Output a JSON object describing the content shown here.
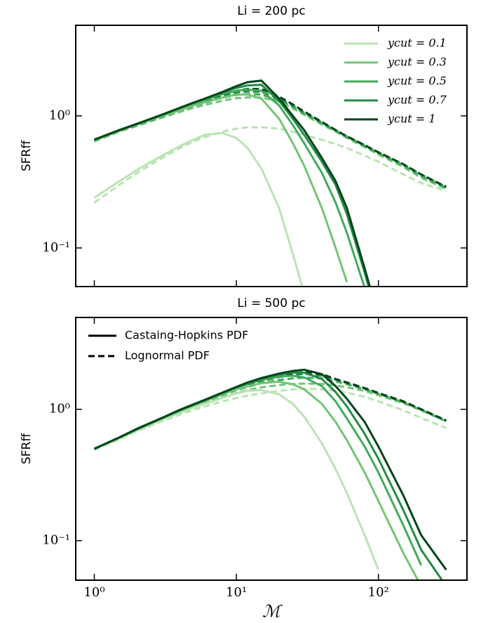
{
  "chart_data": [
    {
      "type": "line",
      "title": "Li = 200 pc",
      "ylabel": "SFRff",
      "xscale": "log",
      "yscale": "log",
      "xlim": [
        0.74,
        420
      ],
      "ylim": [
        0.051,
        4.85
      ],
      "xticks": [
        1,
        10,
        100
      ],
      "yticks": [
        {
          "value": 0.1,
          "label": "10⁻¹"
        },
        {
          "value": 1,
          "label": "10⁰"
        }
      ],
      "legend": "upper right",
      "x": [
        1,
        1.5,
        2,
        3,
        4,
        5,
        6,
        8,
        10,
        12,
        15,
        20,
        25,
        30,
        40,
        50,
        60,
        80,
        100,
        150,
        200,
        300
      ],
      "series": [
        {
          "name": "ycut = 0.1",
          "color": "#bae4b3",
          "values": [
            0.24,
            0.32,
            0.39,
            0.5,
            0.59,
            0.66,
            0.72,
            0.74,
            0.68,
            0.57,
            0.4,
            0.2,
            0.09,
            0.045,
            null,
            null,
            null,
            null,
            null,
            null,
            null,
            null
          ],
          "lognormal_values": [
            0.22,
            0.3,
            0.37,
            0.48,
            0.57,
            0.64,
            0.69,
            0.76,
            0.8,
            0.82,
            0.82,
            0.8,
            0.76,
            0.72,
            0.66,
            0.61,
            0.57,
            0.5,
            0.45,
            0.36,
            0.31,
            0.27
          ]
        },
        {
          "name": "ycut = 0.3",
          "color": "#74c476",
          "values": [
            0.65,
            0.77,
            0.86,
            1.0,
            1.1,
            1.2,
            1.27,
            1.38,
            1.45,
            1.45,
            1.35,
            0.95,
            0.62,
            0.42,
            0.2,
            0.1,
            0.055,
            null,
            null,
            null,
            null,
            null
          ],
          "lognormal_values": [
            0.64,
            0.76,
            0.84,
            0.97,
            1.07,
            1.15,
            1.21,
            1.3,
            1.36,
            1.38,
            1.38,
            1.28,
            1.14,
            1.02,
            0.86,
            0.76,
            0.68,
            0.58,
            0.51,
            0.41,
            0.34,
            0.28
          ]
        },
        {
          "name": "ycut = 0.5",
          "color": "#41ab5d",
          "values": [
            0.66,
            0.78,
            0.87,
            1.02,
            1.14,
            1.24,
            1.32,
            1.46,
            1.55,
            1.58,
            1.55,
            1.2,
            0.85,
            0.62,
            0.37,
            0.22,
            0.13,
            0.05,
            null,
            null,
            null,
            null
          ],
          "lognormal_values": [
            0.65,
            0.77,
            0.85,
            0.99,
            1.1,
            1.19,
            1.26,
            1.37,
            1.44,
            1.46,
            1.45,
            1.32,
            1.17,
            1.04,
            0.88,
            0.77,
            0.69,
            0.59,
            0.52,
            0.42,
            0.35,
            0.285
          ]
        },
        {
          "name": "ycut = 0.7",
          "color": "#238b45",
          "values": [
            0.66,
            0.78,
            0.87,
            1.02,
            1.15,
            1.26,
            1.35,
            1.5,
            1.63,
            1.7,
            1.72,
            1.3,
            0.95,
            0.72,
            0.45,
            0.3,
            0.18,
            0.065,
            0.028,
            null,
            null,
            null
          ],
          "lognormal_values": [
            0.65,
            0.77,
            0.86,
            1.0,
            1.12,
            1.21,
            1.29,
            1.42,
            1.5,
            1.53,
            1.52,
            1.35,
            1.2,
            1.06,
            0.89,
            0.78,
            0.7,
            0.6,
            0.53,
            0.43,
            0.36,
            0.29
          ]
        },
        {
          "name": "ycut = 1",
          "color": "#00441b",
          "values": [
            0.66,
            0.78,
            0.87,
            1.02,
            1.15,
            1.26,
            1.35,
            1.52,
            1.68,
            1.8,
            1.85,
            1.35,
            1.0,
            0.78,
            0.48,
            0.32,
            0.2,
            0.07,
            0.03,
            null,
            null,
            null
          ],
          "lognormal_values": [
            0.65,
            0.77,
            0.86,
            1.0,
            1.12,
            1.22,
            1.3,
            1.45,
            1.55,
            1.6,
            1.6,
            1.4,
            1.22,
            1.08,
            0.9,
            0.78,
            0.7,
            0.6,
            0.53,
            0.43,
            0.36,
            0.29
          ]
        }
      ]
    },
    {
      "type": "line",
      "title": "Li = 500 pc",
      "ylabel": "SFRff",
      "xlabel": "ℳ",
      "xscale": "log",
      "yscale": "log",
      "xlim": [
        0.74,
        420
      ],
      "ylim": [
        0.05,
        5
      ],
      "xticks": [
        {
          "value": 1,
          "label": "10⁰"
        },
        {
          "value": 10,
          "label": "10¹"
        },
        {
          "value": 100,
          "label": "10²"
        }
      ],
      "yticks": [
        {
          "value": 0.1,
          "label": "10⁻¹"
        },
        {
          "value": 1,
          "label": "10⁰"
        }
      ],
      "legend": "upper left",
      "line_styles": [
        {
          "label": "Castaing-Hopkins PDF",
          "dash": "solid"
        },
        {
          "label": "Lognormal PDF",
          "dash": "dashed"
        }
      ],
      "x": [
        1,
        1.5,
        2,
        3,
        4,
        5,
        6,
        8,
        10,
        12,
        15,
        20,
        25,
        30,
        40,
        50,
        60,
        80,
        100,
        150,
        200,
        300
      ],
      "series": [
        {
          "color": "#bae4b3",
          "values": [
            0.5,
            0.6,
            0.69,
            0.83,
            0.94,
            1.03,
            1.1,
            1.22,
            1.32,
            1.38,
            1.4,
            1.3,
            1.1,
            0.88,
            0.55,
            0.35,
            0.23,
            0.11,
            0.06,
            null,
            null,
            null
          ],
          "lognormal_values": [
            0.49,
            0.59,
            0.68,
            0.81,
            0.91,
            0.99,
            1.05,
            1.15,
            1.22,
            1.27,
            1.32,
            1.38,
            1.42,
            1.43,
            1.42,
            1.38,
            1.34,
            1.24,
            1.15,
            0.98,
            0.86,
            0.72
          ]
        },
        {
          "color": "#74c476",
          "values": [
            0.5,
            0.61,
            0.7,
            0.85,
            0.97,
            1.07,
            1.15,
            1.3,
            1.42,
            1.5,
            1.58,
            1.62,
            1.55,
            1.42,
            1.1,
            0.8,
            0.58,
            0.33,
            0.2,
            0.08,
            0.045,
            null
          ],
          "lognormal_values": [
            0.5,
            0.6,
            0.7,
            0.84,
            0.95,
            1.04,
            1.11,
            1.24,
            1.33,
            1.4,
            1.47,
            1.53,
            1.56,
            1.57,
            1.56,
            1.52,
            1.47,
            1.38,
            1.28,
            1.11,
            0.98,
            0.81
          ]
        },
        {
          "color": "#41ab5d",
          "values": [
            0.5,
            0.61,
            0.71,
            0.86,
            0.98,
            1.08,
            1.17,
            1.32,
            1.46,
            1.56,
            1.67,
            1.78,
            1.8,
            1.75,
            1.5,
            1.15,
            0.85,
            0.52,
            0.33,
            0.13,
            0.065,
            null
          ],
          "lognormal_values": [
            0.5,
            0.61,
            0.7,
            0.85,
            0.97,
            1.07,
            1.15,
            1.29,
            1.4,
            1.48,
            1.58,
            1.67,
            1.72,
            1.74,
            1.72,
            1.63,
            1.55,
            1.42,
            1.31,
            1.13,
            0.99,
            0.81
          ]
        },
        {
          "color": "#238b45",
          "values": [
            0.5,
            0.61,
            0.71,
            0.86,
            0.99,
            1.09,
            1.18,
            1.34,
            1.47,
            1.58,
            1.7,
            1.84,
            1.9,
            1.9,
            1.7,
            1.35,
            1.05,
            0.65,
            0.42,
            0.17,
            0.085,
            0.045
          ],
          "lognormal_values": [
            0.5,
            0.61,
            0.71,
            0.86,
            0.98,
            1.08,
            1.16,
            1.31,
            1.43,
            1.53,
            1.64,
            1.76,
            1.83,
            1.86,
            1.8,
            1.68,
            1.58,
            1.44,
            1.32,
            1.14,
            1.0,
            0.82
          ]
        },
        {
          "color": "#00441b",
          "values": [
            0.5,
            0.61,
            0.71,
            0.86,
            0.99,
            1.09,
            1.18,
            1.34,
            1.48,
            1.6,
            1.73,
            1.87,
            1.96,
            2.0,
            1.85,
            1.5,
            1.2,
            0.8,
            0.52,
            0.22,
            0.11,
            0.06
          ],
          "lognormal_values": [
            0.5,
            0.61,
            0.71,
            0.86,
            0.98,
            1.08,
            1.17,
            1.32,
            1.45,
            1.55,
            1.67,
            1.8,
            1.88,
            1.92,
            1.85,
            1.7,
            1.6,
            1.45,
            1.33,
            1.15,
            1.0,
            0.82
          ]
        }
      ]
    }
  ]
}
